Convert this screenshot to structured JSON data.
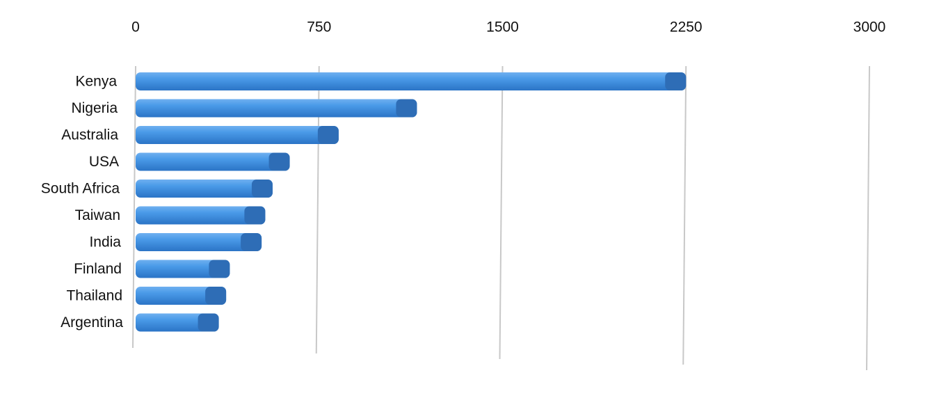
{
  "chart_data": {
    "type": "bar",
    "orientation": "horizontal",
    "categories": [
      "Kenya",
      "Nigeria",
      "Australia",
      "USA",
      "South Africa",
      "Taiwan",
      "India",
      "Finland",
      "Thailand",
      "Argentina"
    ],
    "values": [
      2250,
      1150,
      830,
      630,
      560,
      530,
      515,
      385,
      370,
      340
    ],
    "color": "#3d8fe3",
    "xlim": [
      0,
      3000
    ],
    "xticks": [
      0,
      750,
      1500,
      2250,
      3000
    ],
    "grid": true
  }
}
